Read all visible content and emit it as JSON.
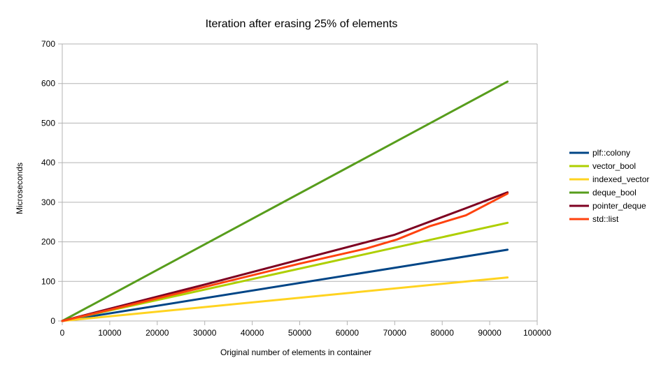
{
  "chart_data": {
    "type": "line",
    "title": "Iteration after erasing 25% of elements",
    "xlabel": "Original number of elements in container",
    "ylabel": "Microseconds",
    "xlim": [
      0,
      100000
    ],
    "ylim": [
      0,
      700
    ],
    "xticks": [
      0,
      10000,
      20000,
      30000,
      40000,
      50000,
      60000,
      70000,
      80000,
      90000,
      100000
    ],
    "yticks": [
      0,
      100,
      200,
      300,
      400,
      500,
      600,
      700
    ],
    "grid": true,
    "legend_position": "right",
    "series": [
      {
        "name": "plf::colony",
        "color": "#004586",
        "x": [
          0,
          93750
        ],
        "y": [
          0,
          180
        ]
      },
      {
        "name": "vector_bool",
        "color": "#aecf00",
        "x": [
          0,
          93750
        ],
        "y": [
          0,
          248
        ]
      },
      {
        "name": "indexed_vector",
        "color": "#ffd320",
        "x": [
          0,
          93750
        ],
        "y": [
          0,
          110
        ]
      },
      {
        "name": "deque_bool",
        "color": "#579d1c",
        "x": [
          0,
          93750
        ],
        "y": [
          0,
          605
        ]
      },
      {
        "name": "pointer_deque",
        "color": "#7e0021",
        "x": [
          0,
          10000,
          30000,
          50000,
          70000,
          85000,
          93750
        ],
        "y": [
          0,
          31,
          92,
          155,
          218,
          285,
          325
        ]
      },
      {
        "name": "std::list",
        "color": "#ff420e",
        "x": [
          0,
          10000,
          30000,
          50000,
          64000,
          70500,
          77500,
          85000,
          93750
        ],
        "y": [
          0,
          28,
          86,
          145,
          183,
          206,
          240,
          267,
          322
        ]
      }
    ]
  }
}
